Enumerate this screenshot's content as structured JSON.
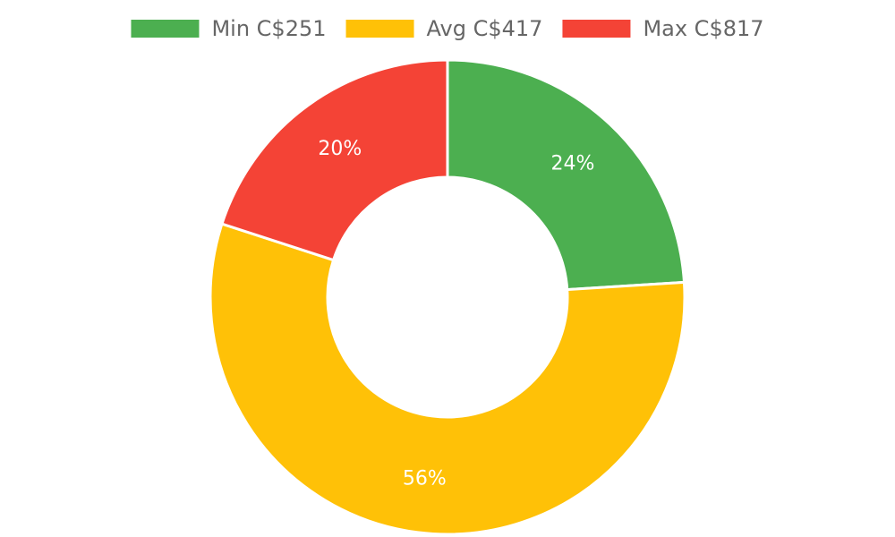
{
  "chart_data": {
    "type": "pie",
    "variant": "doughnut",
    "legend_position": "top",
    "slices": [
      {
        "label": "Min C$251",
        "value": 24,
        "value_label": "24%",
        "color": "#4caf50"
      },
      {
        "label": "Avg C$417",
        "value": 56,
        "value_label": "56%",
        "color": "#ffc107"
      },
      {
        "label": "Max C$817",
        "value": 20,
        "value_label": "20%",
        "color": "#f44336"
      }
    ]
  }
}
